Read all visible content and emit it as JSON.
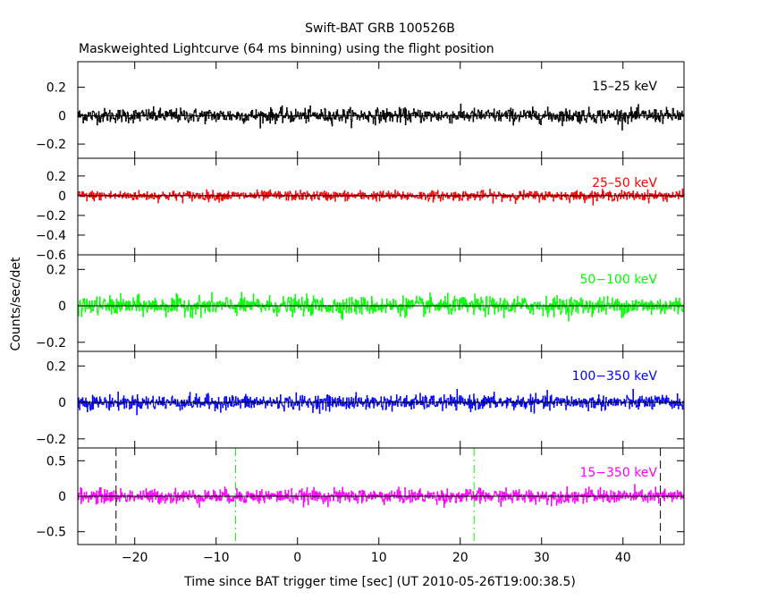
{
  "chart_data": {
    "type": "line",
    "title": "Swift-BAT GRB 100526B",
    "subtitle": "Maskweighted Lightcurve (64 ms binning) using the flight position",
    "xlabel": "Time since BAT trigger time [sec] (UT 2010-05-26T19:00:38.5)",
    "ylabel": "Counts/sec/det",
    "xlim": [
      -27,
      47.5
    ],
    "x_ticks": [
      -20,
      -10,
      0,
      10,
      20,
      30,
      40
    ],
    "bin_seconds": 0.064,
    "panels": [
      {
        "name": "15-25 keV",
        "label": "15–25 keV",
        "color": "#000000",
        "ylim": [
          -0.3,
          0.38
        ],
        "y_ticks": [
          -0.2,
          0,
          0.2
        ],
        "y_tick_labels": [
          "−0.2",
          "0",
          "0.2"
        ],
        "noise_sigma": 0.025
      },
      {
        "name": "25-50 keV",
        "label": "25–50 keV",
        "color": "#ff0000",
        "ylim": [
          -0.6,
          0.38
        ],
        "y_ticks": [
          -0.6,
          -0.4,
          -0.2,
          0,
          0.2
        ],
        "y_tick_labels": [
          "−0.6",
          "−0.4",
          "−0.2",
          "0",
          "0.2"
        ],
        "noise_sigma": 0.025
      },
      {
        "name": "50-100 keV",
        "label": "50−100 keV",
        "color": "#00ff00",
        "ylim": [
          -0.25,
          0.28
        ],
        "y_ticks": [
          -0.2,
          0,
          0.2
        ],
        "y_tick_labels": [
          "−0.2",
          "0",
          "0.2"
        ],
        "noise_sigma": 0.025
      },
      {
        "name": "100-350 keV",
        "label": "100−350 keV",
        "color": "#0000ff",
        "ylim": [
          -0.25,
          0.28
        ],
        "y_ticks": [
          -0.2,
          0,
          0.2
        ],
        "y_tick_labels": [
          "−0.2",
          "0",
          "0.2"
        ],
        "noise_sigma": 0.02
      },
      {
        "name": "15-350 keV",
        "label": "15−350 keV",
        "color": "#ff00ff",
        "ylim": [
          -0.68,
          0.68
        ],
        "y_ticks": [
          -0.5,
          0,
          0.5
        ],
        "y_tick_labels": [
          "−0.5",
          "0",
          "0.5"
        ],
        "noise_sigma": 0.05
      }
    ],
    "vertical_markers": [
      {
        "x": -22.3,
        "style": "dashed",
        "color": "#000000"
      },
      {
        "x": -7.6,
        "style": "dash-dot",
        "color": "#00ff00"
      },
      {
        "x": 21.7,
        "style": "dash-dot",
        "color": "#00ff00"
      },
      {
        "x": 44.6,
        "style": "dashed",
        "color": "#000000"
      }
    ],
    "x_tick_labels": [
      "−20",
      "−10",
      "0",
      "10",
      "20",
      "30",
      "40"
    ],
    "grid": false,
    "legend": "band label top-right of each panel"
  }
}
